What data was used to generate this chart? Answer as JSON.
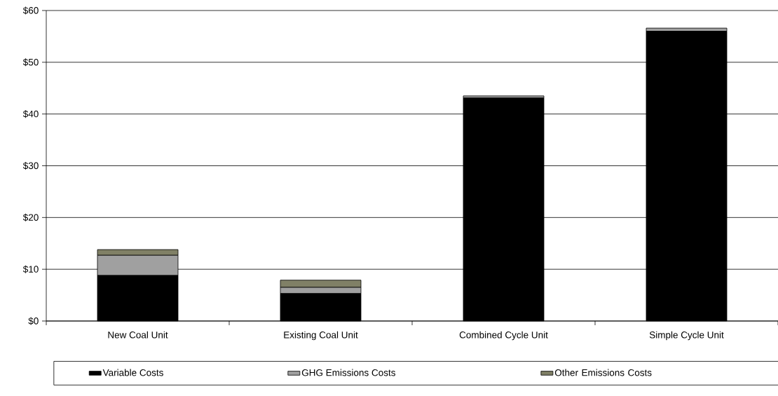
{
  "chart_data": {
    "type": "bar",
    "stacked": true,
    "categories": [
      "New Coal Unit",
      "Existing Coal Unit",
      "Combined Cycle Unit",
      "Simple Cycle Unit"
    ],
    "series": [
      {
        "name": "Variable Costs",
        "color": "#000000",
        "values": [
          8.8,
          5.3,
          43.1,
          56.0
        ]
      },
      {
        "name": "GHG Emissions Costs",
        "color": "#a0a0a0",
        "values": [
          3.9,
          1.2,
          0.4,
          0.6
        ]
      },
      {
        "name": "Other Emissions Costs",
        "color": "#808066",
        "values": [
          1.1,
          1.4,
          0.0,
          0.0
        ]
      }
    ],
    "ylim": [
      0,
      60
    ],
    "yticks": [
      {
        "value": 0,
        "label": "$0"
      },
      {
        "value": 10,
        "label": "$10"
      },
      {
        "value": 20,
        "label": "$20"
      },
      {
        "value": 30,
        "label": "$30"
      },
      {
        "value": 40,
        "label": "$40"
      },
      {
        "value": 50,
        "label": "$50"
      },
      {
        "value": 60,
        "label": "$60"
      }
    ],
    "grid": "y",
    "legend": "bottom"
  }
}
